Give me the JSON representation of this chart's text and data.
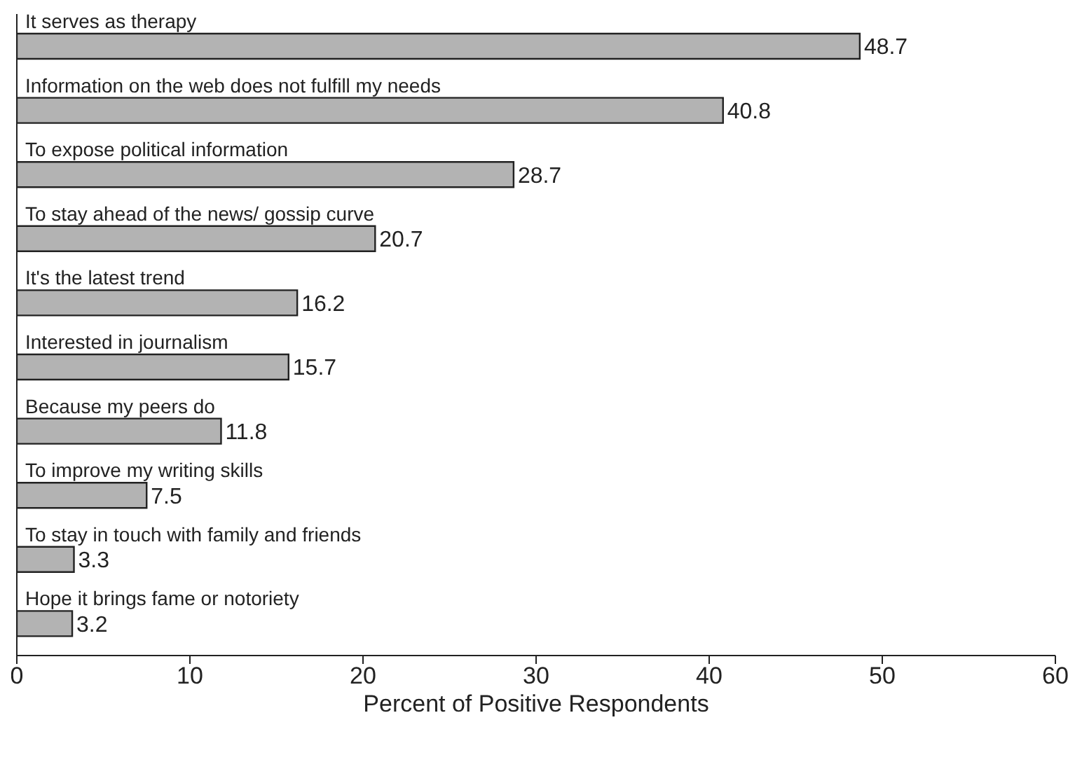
{
  "chart_data": {
    "type": "bar",
    "orientation": "horizontal",
    "xlabel": "Percent of Positive Respondents",
    "categories": [
      "It serves as therapy",
      "Information on the web does not fulfill my needs",
      "To expose political information",
      "To stay ahead of the news/ gossip curve",
      "It's the latest trend",
      "Interested in journalism",
      "Because my peers do",
      "To improve my writing skills",
      "To stay in touch with family and friends",
      "Hope it brings fame or notoriety"
    ],
    "values": [
      48.7,
      40.8,
      28.7,
      20.7,
      16.2,
      15.7,
      11.8,
      7.5,
      3.3,
      3.2
    ],
    "color": "#b3b3b3",
    "xlim": [
      0,
      60
    ],
    "xticks": [
      0,
      10,
      20,
      30,
      40,
      50,
      60
    ],
    "data_labels": true,
    "tick_labels": "x",
    "grid": false,
    "legend": false
  }
}
